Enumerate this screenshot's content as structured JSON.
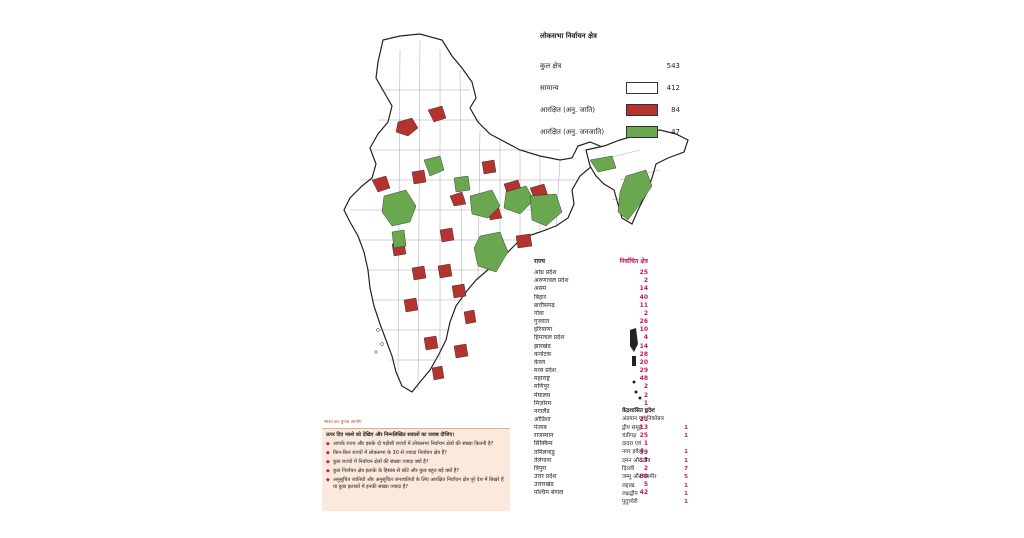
{
  "legend": {
    "title": "लोकसभा निर्वाचन क्षेत्र",
    "total_label": "कुल क्षेत्र",
    "total_value": "543",
    "items": [
      {
        "label": "सामान्य",
        "value": "412",
        "color": "#ffffff"
      },
      {
        "label": "आरक्षित (अनु. जाति)",
        "value": "84",
        "color": "#b5332f"
      },
      {
        "label": "आरक्षित (अनु. जनजाति)",
        "value": "47",
        "color": "#6aa84f"
      }
    ]
  },
  "states_table": {
    "header_state": "राज्य",
    "header_seats": "निर्वाचित क्षेत्र",
    "rows": [
      {
        "name": "आंध्र प्रदेश",
        "seats": "25"
      },
      {
        "name": "अरुणाचल प्रदेश",
        "seats": "2"
      },
      {
        "name": "असम",
        "seats": "14"
      },
      {
        "name": "बिहार",
        "seats": "40"
      },
      {
        "name": "छत्तीसगढ़",
        "seats": "11"
      },
      {
        "name": "गोवा",
        "seats": "2"
      },
      {
        "name": "गुजरात",
        "seats": "26"
      },
      {
        "name": "हरियाणा",
        "seats": "10"
      },
      {
        "name": "हिमाचल प्रदेश",
        "seats": "4"
      },
      {
        "name": "झारखंड",
        "seats": "14"
      },
      {
        "name": "कर्नाटक",
        "seats": "28"
      },
      {
        "name": "केरल",
        "seats": "20"
      },
      {
        "name": "मध्य प्रदेश",
        "seats": "29"
      },
      {
        "name": "महाराष्ट्र",
        "seats": "48"
      },
      {
        "name": "मणिपुर",
        "seats": "2"
      },
      {
        "name": "मेघालय",
        "seats": "2"
      },
      {
        "name": "मिज़ोरम",
        "seats": "1"
      },
      {
        "name": "नगालैंड",
        "seats": "1"
      },
      {
        "name": "ओडिशा",
        "seats": "21"
      },
      {
        "name": "पंजाब",
        "seats": "13"
      },
      {
        "name": "राजस्थान",
        "seats": "25"
      },
      {
        "name": "सिक्किम",
        "seats": "1"
      },
      {
        "name": "तमिलनाडु",
        "seats": "39"
      },
      {
        "name": "तेलंगाना",
        "seats": "17"
      },
      {
        "name": "त्रिपुरा",
        "seats": "2"
      },
      {
        "name": "उत्तर प्रदेश",
        "seats": "80"
      },
      {
        "name": "उत्तराखंड",
        "seats": "5"
      },
      {
        "name": "पश्चिम बंगाल",
        "seats": "42"
      }
    ]
  },
  "ut_table": {
    "header": "केंद्रशासित प्रदेश",
    "rows": [
      {
        "name": "अंडमान एवं निकोबार",
        "seats": ""
      },
      {
        "name": "द्वीप समूह",
        "seats": "1"
      },
      {
        "name": "चंडीगढ़",
        "seats": "1"
      },
      {
        "name": "दादरा एवं",
        "seats": ""
      },
      {
        "name": "नगर हवेली",
        "seats": "1"
      },
      {
        "name": "दमन और दीव",
        "seats": "1"
      },
      {
        "name": "दिल्ली",
        "seats": "7"
      },
      {
        "name": "जम्मू और कश्मीर",
        "seats": "5"
      },
      {
        "name": "लद्दाख",
        "seats": "1"
      },
      {
        "name": "लक्षद्वीप",
        "seats": "1"
      },
      {
        "name": "पुदुच्चेरी",
        "seats": "1"
      }
    ]
  },
  "question_box": {
    "tag": "भारत का चुनाव आयोग",
    "intro": "ऊपर दिए नक्शे को देखिए और निम्नलिखित सवालों का जवाब दीजिए।",
    "questions": [
      "आपके राज्य और इसके दो पड़ोसी राज्यों में लोकसभा निर्वाचन क्षेत्रों की संख्या कितनी है?",
      "किन-किन राज्यों में लोकसभा के 30 से ज्यादा निर्वाचन क्षेत्र हैं?",
      "कुछ राज्यों में निर्वाचन क्षेत्रों की संख्या ज्यादा क्यों है?",
      "कुछ निर्वाचन क्षेत्र इलाके के हिसाब से छोटे और कुछ बहुत बड़े क्यों हैं?",
      "अनुसूचित जातियों और अनुसूचित जनजातियों के लिए आरक्षित निर्वाचन क्षेत्र पूरे देश में बिखरे हैं या कुछ इलाकों में इनकी संख्या ज्यादा है?"
    ]
  }
}
